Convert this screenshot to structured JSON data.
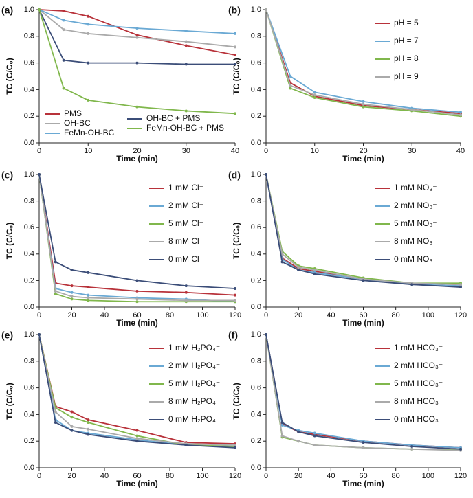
{
  "chart_data": [
    {
      "type": "line",
      "label": "(a)",
      "xlabel": "Time (min)",
      "ylabel": "TC (C/C₀)",
      "x": [
        0,
        5,
        10,
        20,
        30,
        40
      ],
      "xlim": [
        0,
        40
      ],
      "xticks": [
        0,
        10,
        20,
        30,
        40
      ],
      "ylim": [
        0,
        1
      ],
      "yticks": [
        {
          "value": 0,
          "label": "0.0"
        },
        0.2,
        0.4,
        0.6,
        0.8,
        {
          "value": 1,
          "label": "1.0"
        }
      ],
      "legend": "lower left",
      "series": [
        {
          "name": "PMS",
          "color": "#b8323a",
          "values": [
            1.0,
            0.99,
            0.95,
            0.81,
            0.73,
            0.66
          ]
        },
        {
          "name": "OH-BC",
          "color": "#aaaaaa",
          "values": [
            1.0,
            0.85,
            0.82,
            0.79,
            0.76,
            0.72
          ]
        },
        {
          "name": "FeMn-OH-BC",
          "color": "#6aa9d4",
          "values": [
            1.0,
            0.92,
            0.89,
            0.86,
            0.84,
            0.82
          ]
        },
        {
          "name": "OH-BC + PMS",
          "color": "#3b4d78",
          "values": [
            1.0,
            0.62,
            0.6,
            0.6,
            0.59,
            0.59
          ]
        },
        {
          "name": "FeMn-OH-BC + PMS",
          "color": "#80b74c",
          "values": [
            1.0,
            0.41,
            0.32,
            0.27,
            0.24,
            0.22
          ]
        }
      ]
    },
    {
      "type": "line",
      "label": "(b)",
      "xlabel": "Time (min)",
      "ylabel": "TC (C/C₀)",
      "x": [
        0,
        5,
        10,
        20,
        30,
        40
      ],
      "xlim": [
        0,
        40
      ],
      "xticks": [
        0,
        10,
        20,
        30,
        40
      ],
      "ylim": [
        0,
        1
      ],
      "yticks": [
        {
          "value": 0,
          "label": "0.0"
        },
        0.2,
        0.4,
        0.6,
        0.8,
        {
          "value": 1,
          "label": "1.0"
        }
      ],
      "legend": "upper right",
      "series": [
        {
          "name": "pH = 5",
          "color": "#b8323a",
          "values": [
            1.0,
            0.45,
            0.35,
            0.28,
            0.25,
            0.22
          ]
        },
        {
          "name": "pH = 7",
          "color": "#6aa9d4",
          "values": [
            1.0,
            0.5,
            0.38,
            0.31,
            0.26,
            0.23
          ]
        },
        {
          "name": "pH = 8",
          "color": "#80b74c",
          "values": [
            1.0,
            0.41,
            0.34,
            0.27,
            0.24,
            0.2
          ]
        },
        {
          "name": "pH = 9",
          "color": "#aaaaaa",
          "values": [
            1.0,
            0.43,
            0.36,
            0.29,
            0.25,
            0.21
          ]
        }
      ]
    },
    {
      "type": "line",
      "label": "(c)",
      "xlabel": "Time (min)",
      "ylabel": "TC (C/C₀)",
      "x": [
        0,
        10,
        20,
        30,
        60,
        90,
        120
      ],
      "xlim": [
        0,
        120
      ],
      "xticks": [
        0,
        20,
        40,
        60,
        80,
        100,
        120
      ],
      "ylim": [
        0,
        1
      ],
      "yticks": [
        {
          "value": 0,
          "label": "0.0"
        },
        0.2,
        0.4,
        0.6,
        0.8,
        {
          "value": 1,
          "label": "1.0"
        }
      ],
      "legend": "upper right",
      "series": [
        {
          "name": "1 mM Cl⁻",
          "color": "#b8323a",
          "values": [
            1.0,
            0.18,
            0.16,
            0.15,
            0.12,
            0.11,
            0.09
          ]
        },
        {
          "name": "2 mM Cl⁻",
          "color": "#6aa9d4",
          "values": [
            1.0,
            0.14,
            0.11,
            0.09,
            0.07,
            0.06,
            0.04
          ]
        },
        {
          "name": "5 mM Cl⁻",
          "color": "#80b74c",
          "values": [
            1.0,
            0.1,
            0.06,
            0.05,
            0.04,
            0.04,
            0.04
          ]
        },
        {
          "name": "8 mM Cl⁻",
          "color": "#aaaaaa",
          "values": [
            1.0,
            0.12,
            0.08,
            0.07,
            0.06,
            0.05,
            0.05
          ]
        },
        {
          "name": "0 mM Cl⁻",
          "color": "#3b4d78",
          "values": [
            1.0,
            0.34,
            0.28,
            0.26,
            0.2,
            0.16,
            0.14
          ]
        }
      ]
    },
    {
      "type": "line",
      "label": "(d)",
      "xlabel": "Time (min)",
      "ylabel": "TC (C/C₀)",
      "x": [
        0,
        10,
        20,
        30,
        60,
        90,
        120
      ],
      "xlim": [
        0,
        120
      ],
      "xticks": [
        0,
        20,
        40,
        60,
        80,
        100,
        120
      ],
      "ylim": [
        0,
        1
      ],
      "yticks": [
        {
          "value": 0,
          "label": "0.0"
        },
        0.2,
        0.4,
        0.6,
        0.8,
        {
          "value": 1,
          "label": "1.0"
        }
      ],
      "legend": "upper right",
      "series": [
        {
          "name": "1 mM NO₃⁻",
          "color": "#b8323a",
          "values": [
            1.0,
            0.37,
            0.29,
            0.27,
            0.21,
            0.18,
            0.17
          ]
        },
        {
          "name": "2 mM NO₃⁻",
          "color": "#6aa9d4",
          "values": [
            1.0,
            0.36,
            0.28,
            0.26,
            0.21,
            0.17,
            0.16
          ]
        },
        {
          "name": "5 mM NO₃⁻",
          "color": "#80b74c",
          "values": [
            1.0,
            0.42,
            0.31,
            0.29,
            0.22,
            0.18,
            0.18
          ]
        },
        {
          "name": "8 mM NO₃⁻",
          "color": "#aaaaaa",
          "values": [
            1.0,
            0.4,
            0.3,
            0.28,
            0.21,
            0.18,
            0.17
          ]
        },
        {
          "name": "0 mM NO₃⁻",
          "color": "#3b4d78",
          "values": [
            1.0,
            0.34,
            0.28,
            0.25,
            0.2,
            0.17,
            0.15
          ]
        }
      ]
    },
    {
      "type": "line",
      "label": "(e)",
      "xlabel": "Time (min)",
      "ylabel": "TC (C/C₀)",
      "x": [
        0,
        10,
        20,
        30,
        60,
        90,
        120
      ],
      "xlim": [
        0,
        120
      ],
      "xticks": [
        0,
        20,
        40,
        60,
        80,
        100,
        120
      ],
      "ylim": [
        0,
        1
      ],
      "yticks": [
        {
          "value": 0,
          "label": "0.0"
        },
        0.2,
        0.4,
        0.6,
        0.8,
        {
          "value": 1,
          "label": "1.0"
        }
      ],
      "legend": "upper right",
      "series": [
        {
          "name": "1 mM H₂PO₄⁻",
          "color": "#b8323a",
          "values": [
            1.0,
            0.46,
            0.42,
            0.36,
            0.28,
            0.19,
            0.18
          ]
        },
        {
          "name": "2 mM H₂PO₄⁻",
          "color": "#6aa9d4",
          "values": [
            1.0,
            0.36,
            0.28,
            0.26,
            0.21,
            0.17,
            0.16
          ]
        },
        {
          "name": "5 mM H₂PO₄⁻",
          "color": "#80b74c",
          "values": [
            1.0,
            0.45,
            0.38,
            0.34,
            0.24,
            0.17,
            0.16
          ]
        },
        {
          "name": "8 mM H₂PO₄⁻",
          "color": "#aaaaaa",
          "values": [
            1.0,
            0.42,
            0.31,
            0.29,
            0.22,
            0.18,
            0.17
          ]
        },
        {
          "name": "0 mM H₂PO₄⁻",
          "color": "#3b4d78",
          "values": [
            1.0,
            0.34,
            0.28,
            0.25,
            0.2,
            0.17,
            0.15
          ]
        }
      ]
    },
    {
      "type": "line",
      "label": "(f)",
      "xlabel": "Time (min)",
      "ylabel": "TC (C/C₀)",
      "x": [
        0,
        10,
        20,
        30,
        60,
        90,
        120
      ],
      "xlim": [
        0,
        120
      ],
      "xticks": [
        0,
        20,
        40,
        60,
        80,
        100,
        120
      ],
      "ylim": [
        0,
        1
      ],
      "yticks": [
        {
          "value": 0,
          "label": "0.0"
        },
        0.2,
        0.4,
        0.6,
        0.8,
        {
          "value": 1,
          "label": "1.0"
        }
      ],
      "legend": "upper right",
      "series": [
        {
          "name": "1 mM HCO₃⁻",
          "color": "#b8323a",
          "values": [
            1.0,
            0.33,
            0.27,
            0.25,
            0.2,
            0.17,
            0.15
          ]
        },
        {
          "name": "2 mM HCO₃⁻",
          "color": "#6aa9d4",
          "values": [
            1.0,
            0.32,
            0.28,
            0.26,
            0.2,
            0.17,
            0.15
          ]
        },
        {
          "name": "5 mM HCO₃⁻",
          "color": "#80b74c",
          "values": [
            1.0,
            0.23,
            0.2,
            0.17,
            0.15,
            0.14,
            0.14
          ]
        },
        {
          "name": "8 mM HCO₃⁻",
          "color": "#aaaaaa",
          "values": [
            1.0,
            0.24,
            0.2,
            0.17,
            0.15,
            0.14,
            0.13
          ]
        },
        {
          "name": "0 mM HCO₃⁻",
          "color": "#3b4d78",
          "values": [
            1.0,
            0.34,
            0.27,
            0.24,
            0.19,
            0.16,
            0.14
          ]
        }
      ]
    }
  ]
}
